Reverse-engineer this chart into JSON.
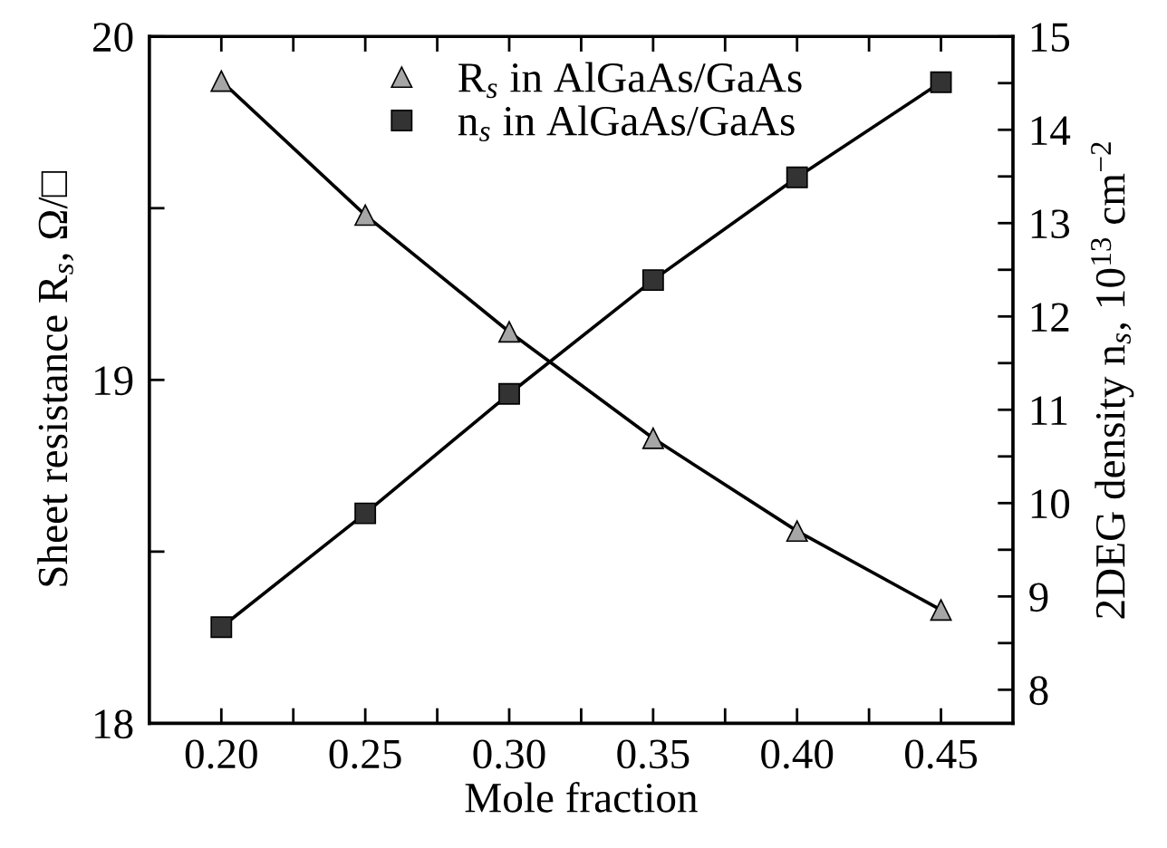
{
  "chart_data": {
    "type": "line",
    "xlabel": "Mole fraction",
    "ylabel": "Sheet resistance R$_{s}$, Ω/□",
    "y2label": "2DEG density n$_{s}$, 10$^{13}$ cm$^{−2}$",
    "x": [
      0.2,
      0.25,
      0.3,
      0.35,
      0.4,
      0.45
    ],
    "series": [
      {
        "name": "R$_{s}$ in AlGaAs/GaAs",
        "color": "#a6a6a6",
        "marker": "triangle",
        "values": [
          19.87,
          19.48,
          19.14,
          18.83,
          18.56,
          18.33
        ]
      },
      {
        "name": "n$_{s}$ in AlGaAs/GaAs",
        "color": "#333333",
        "marker": "square",
        "axis": "y2",
        "values": [
          8.67,
          9.89,
          11.17,
          12.39,
          13.49,
          14.51
        ]
      }
    ],
    "xlim": [
      0.175,
      0.475
    ],
    "xticks": [
      {
        "value": 0.2,
        "label": "0.20"
      },
      {
        "value": 0.225,
        "label": null
      },
      {
        "value": 0.25,
        "label": "0.25"
      },
      {
        "value": 0.275,
        "label": null
      },
      {
        "value": 0.3,
        "label": "0.30"
      },
      {
        "value": 0.325,
        "label": null
      },
      {
        "value": 0.35,
        "label": "0.35"
      },
      {
        "value": 0.375,
        "label": null
      },
      {
        "value": 0.4,
        "label": "0.40"
      },
      {
        "value": 0.425,
        "label": null
      },
      {
        "value": 0.45,
        "label": "0.45"
      }
    ],
    "ylim": [
      18,
      20
    ],
    "yticks": [
      18,
      {
        "value": 18.5,
        "label": null
      },
      19,
      {
        "value": 19.5,
        "label": null
      },
      20
    ],
    "y2lim": [
      7.64,
      15
    ],
    "y2ticks": [
      8,
      {
        "value": 8.5,
        "label": null
      },
      9,
      {
        "value": 9.5,
        "label": null
      },
      10,
      {
        "value": 10.5,
        "label": null
      },
      11,
      {
        "value": 11.5,
        "label": null
      },
      12,
      {
        "value": 12.5,
        "label": null
      },
      13,
      {
        "value": 13.5,
        "label": null
      },
      14,
      {
        "value": 14.5,
        "label": null
      },
      15
    ],
    "legend": "top",
    "grid": false,
    "line_style": "solid"
  }
}
